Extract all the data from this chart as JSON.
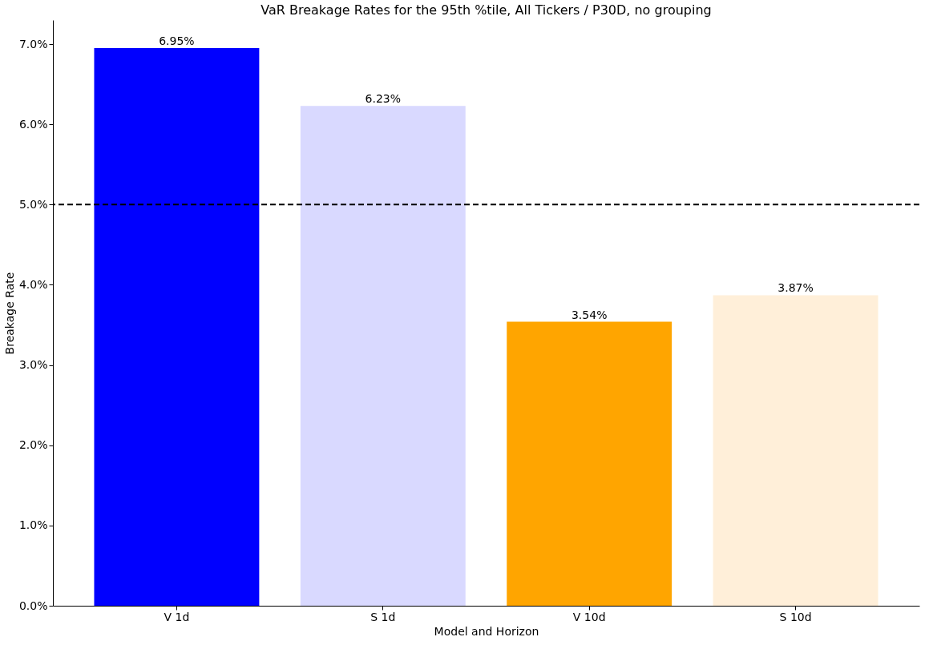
{
  "chart_data": {
    "type": "bar",
    "title": "VaR Breakage Rates for the 95th %tile, All Tickers / P30D, no grouping",
    "xlabel": "Model and Horizon",
    "ylabel": "Breakage Rate",
    "categories": [
      "V 1d",
      "S 1d",
      "V 10d",
      "S 10d"
    ],
    "values": [
      6.95,
      6.23,
      3.54,
      3.87
    ],
    "colors": [
      "#0000ff",
      "#d9d9ff",
      "#ffa500",
      "#ffefd9"
    ],
    "value_labels": [
      "6.95%",
      "6.23%",
      "3.54%",
      "3.87%"
    ],
    "ylim": [
      0,
      7.3
    ],
    "yticks": [
      {
        "value": 0,
        "label": "0.0%"
      },
      {
        "value": 1,
        "label": "1.0%"
      },
      {
        "value": 2,
        "label": "2.0%"
      },
      {
        "value": 3,
        "label": "3.0%"
      },
      {
        "value": 4,
        "label": "4.0%"
      },
      {
        "value": 5,
        "label": "5.0%"
      },
      {
        "value": 6,
        "label": "6.0%"
      },
      {
        "value": 7,
        "label": "7.0%"
      }
    ],
    "ref_lines": [
      {
        "axis": "y",
        "value": 5,
        "color": "#000000",
        "line_style": "dashed"
      }
    ],
    "grid": false,
    "legend": false
  }
}
